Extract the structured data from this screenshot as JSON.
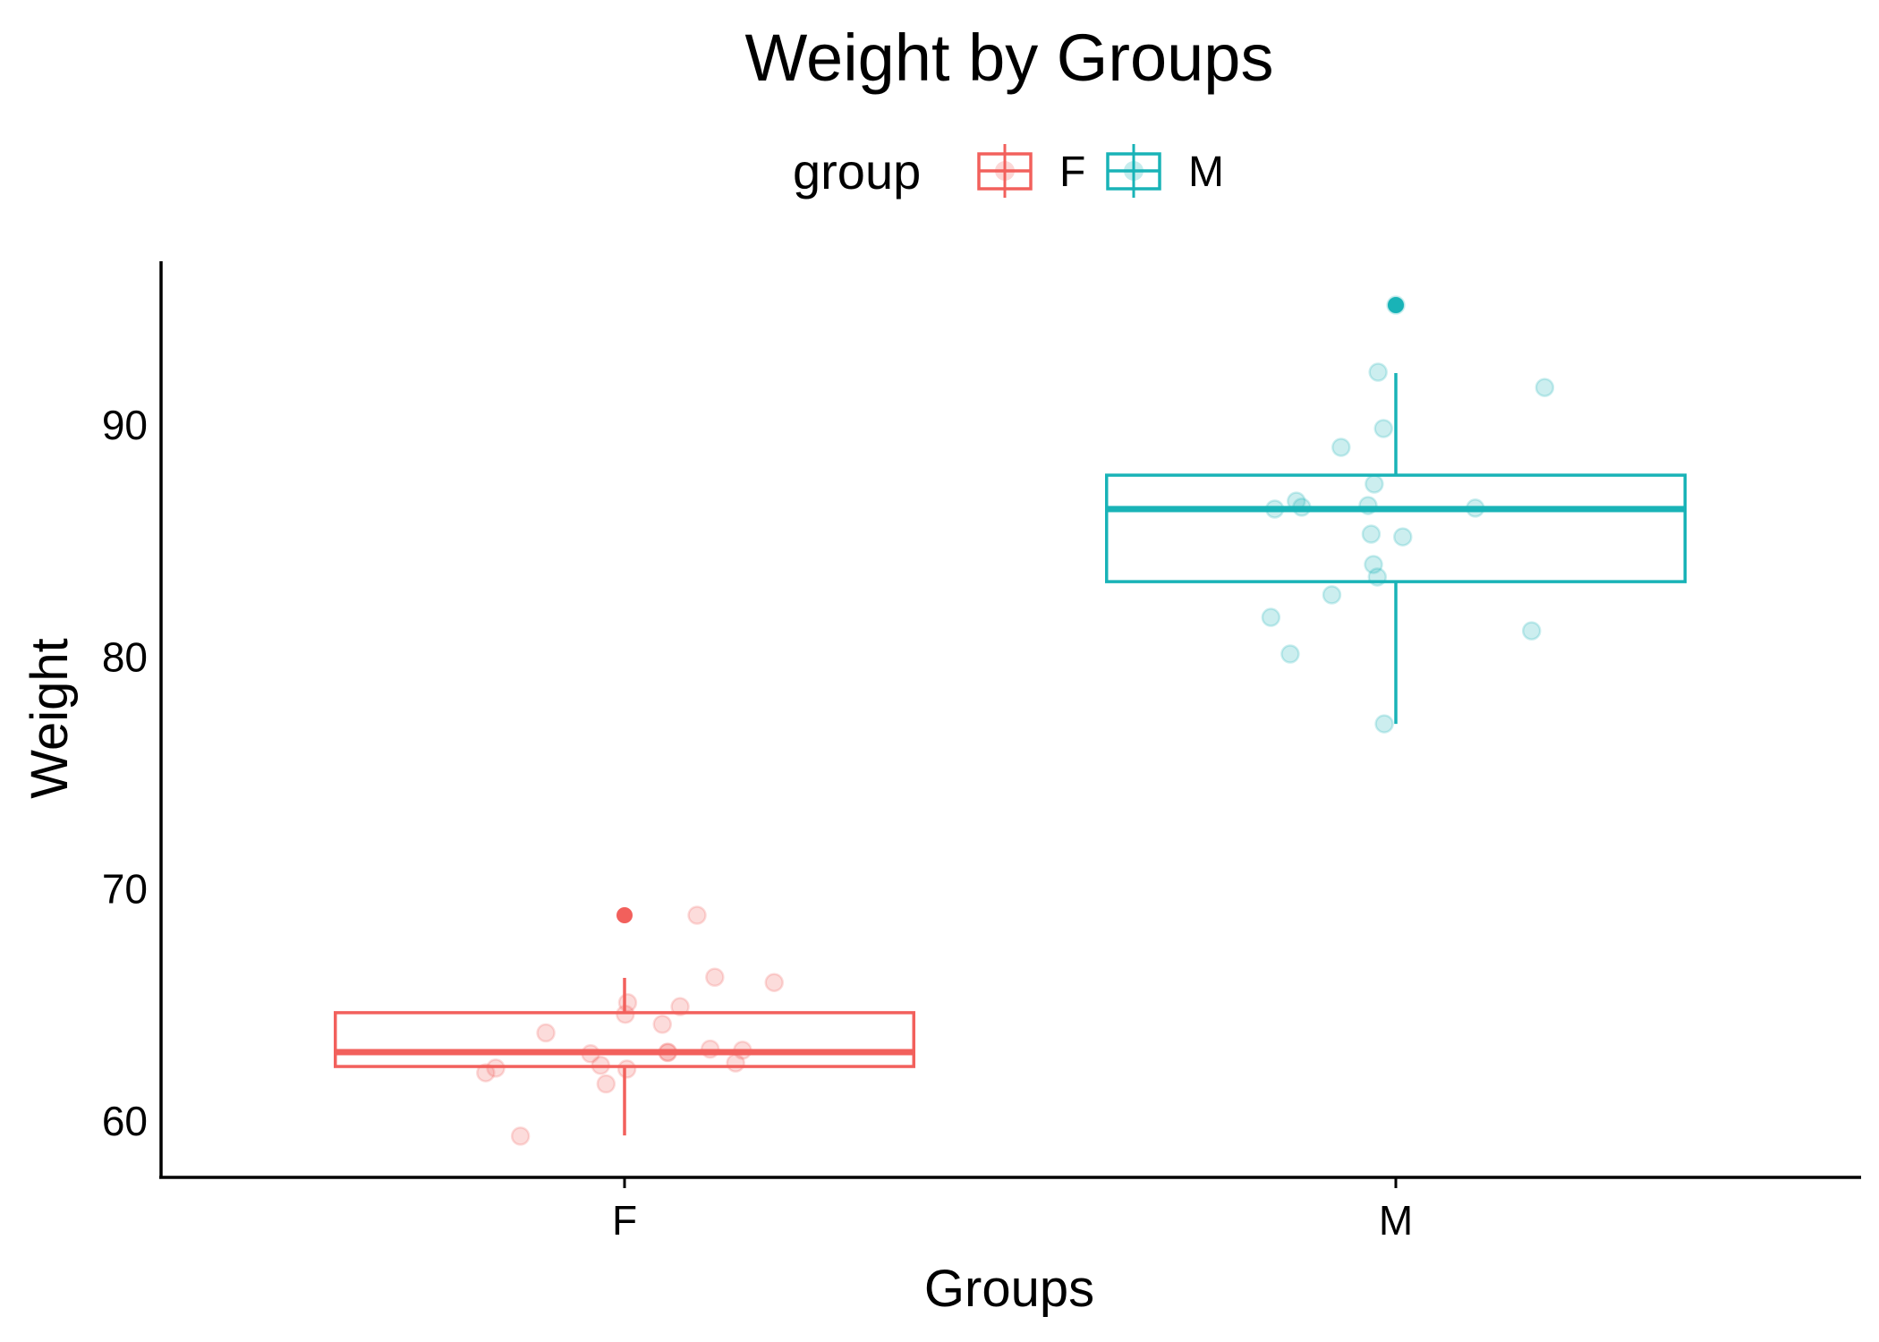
{
  "chart_data": {
    "type": "boxplot",
    "title": "Weight by Groups",
    "xlabel": "Groups",
    "ylabel": "Weight",
    "ylim": [
      57.5,
      97
    ],
    "yticks": [
      60,
      70,
      80,
      90
    ],
    "categories": [
      "F",
      "M"
    ],
    "grid": false,
    "legend": {
      "title": "group",
      "position": "top",
      "entries": [
        {
          "label": "F",
          "color": "#F2605C"
        },
        {
          "label": "M",
          "color": "#19B3B7"
        }
      ]
    },
    "series": [
      {
        "name": "F",
        "color": "#F2605C",
        "box": {
          "q1": 62.35,
          "median": 62.97,
          "q3": 64.67,
          "whisker_low": 59.38,
          "whisker_high": 66.17
        },
        "outliers": [
          68.87
        ],
        "points": [
          {
            "jitter": 0.094,
            "y": 68.87
          },
          {
            "jitter": 0.117,
            "y": 66.2
          },
          {
            "jitter": 0.194,
            "y": 65.97
          },
          {
            "jitter": 0.004,
            "y": 65.1
          },
          {
            "jitter": 0.072,
            "y": 64.93
          },
          {
            "jitter": 0.001,
            "y": 64.6
          },
          {
            "jitter": 0.049,
            "y": 64.17
          },
          {
            "jitter": -0.102,
            "y": 63.8
          },
          {
            "jitter": -0.044,
            "y": 62.9
          },
          {
            "jitter": 0.056,
            "y": 62.95
          },
          {
            "jitter": 0.056,
            "y": 62.97
          },
          {
            "jitter": 0.111,
            "y": 63.1
          },
          {
            "jitter": 0.153,
            "y": 63.05
          },
          {
            "jitter": -0.031,
            "y": 62.4
          },
          {
            "jitter": 0.144,
            "y": 62.5
          },
          {
            "jitter": -0.167,
            "y": 62.28
          },
          {
            "jitter": -0.18,
            "y": 62.08
          },
          {
            "jitter": 0.003,
            "y": 62.24
          },
          {
            "jitter": -0.024,
            "y": 61.6
          },
          {
            "jitter": -0.135,
            "y": 59.35
          }
        ]
      },
      {
        "name": "M",
        "color": "#19B3B7",
        "box": {
          "q1": 83.25,
          "median": 86.38,
          "q3": 87.84,
          "whisker_low": 77.12,
          "whisker_high": 92.24
        },
        "outliers": [
          95.17
        ],
        "points": [
          {
            "jitter": 0.0,
            "y": 95.17
          },
          {
            "jitter": -0.023,
            "y": 92.28
          },
          {
            "jitter": 0.193,
            "y": 91.62
          },
          {
            "jitter": -0.016,
            "y": 89.85
          },
          {
            "jitter": -0.071,
            "y": 89.04
          },
          {
            "jitter": -0.028,
            "y": 87.46
          },
          {
            "jitter": -0.129,
            "y": 86.72
          },
          {
            "jitter": -0.122,
            "y": 86.46
          },
          {
            "jitter": -0.157,
            "y": 86.38
          },
          {
            "jitter": -0.036,
            "y": 86.53
          },
          {
            "jitter": 0.103,
            "y": 86.42
          },
          {
            "jitter": -0.032,
            "y": 85.3
          },
          {
            "jitter": 0.009,
            "y": 85.18
          },
          {
            "jitter": -0.029,
            "y": 83.99
          },
          {
            "jitter": -0.024,
            "y": 83.45
          },
          {
            "jitter": -0.083,
            "y": 82.68
          },
          {
            "jitter": -0.162,
            "y": 81.71
          },
          {
            "jitter": 0.176,
            "y": 81.13
          },
          {
            "jitter": -0.137,
            "y": 80.13
          },
          {
            "jitter": -0.015,
            "y": 77.12
          }
        ]
      }
    ]
  }
}
